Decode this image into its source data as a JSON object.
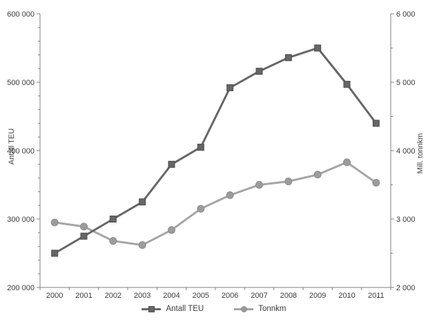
{
  "chart_data": {
    "type": "line",
    "title": "",
    "categories": [
      "2000",
      "2001",
      "2002",
      "2003",
      "2004",
      "2005",
      "2006",
      "2007",
      "2008",
      "2009",
      "2010",
      "2011"
    ],
    "series": [
      {
        "name": "Antall TEU",
        "axis": "left",
        "marker": "square",
        "color": "#666666",
        "marker_border": "#4d4d4d",
        "values": [
          250000,
          275000,
          300000,
          325000,
          380000,
          405000,
          492000,
          516000,
          536000,
          550000,
          497000,
          440000
        ]
      },
      {
        "name": "Tonnkm",
        "axis": "right",
        "marker": "circle",
        "color": "#a5a5a5",
        "marker_fill": "#9c9c9c",
        "marker_border": "#8c8c8c",
        "values": [
          2950,
          2890,
          2680,
          2620,
          2840,
          3150,
          3350,
          3500,
          3550,
          3650,
          3830,
          3530
        ]
      }
    ],
    "axes": {
      "left": {
        "label": "Antall TEU",
        "min": 200000,
        "max": 600000,
        "major": 100000,
        "minor": 20000,
        "tick_labels": [
          "200 000",
          "300 000",
          "400 000",
          "500 000",
          "600 000"
        ]
      },
      "right": {
        "label": "Mill. tonnkm",
        "min": 2000,
        "max": 6000,
        "major": 1000,
        "minor": 500,
        "tick_labels": [
          "2 000",
          "3 000",
          "4 000",
          "5 000",
          "6 000"
        ]
      }
    },
    "legend": {
      "position": "bottom",
      "entries": [
        "Antall TEU",
        "Tonnkm"
      ]
    },
    "grid": false,
    "background": "#ffffff",
    "axis_color": "#7f7f7f",
    "text_color": "#3a3a3a"
  }
}
